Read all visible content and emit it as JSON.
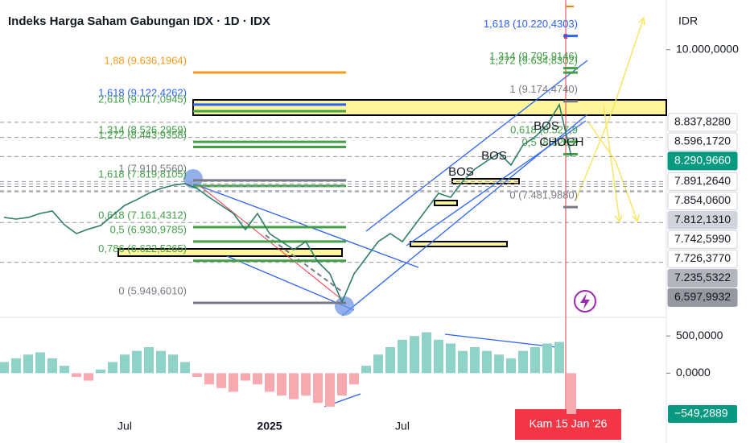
{
  "chart_data": [
    {
      "type": "line",
      "title": "Indeks Harga Saham Gabungan IDX · 1D · IDX",
      "currency": "IDR",
      "crosshair_label": "Kam 15 Jan '26",
      "categories": [
        null,
        null,
        null,
        null,
        null,
        null,
        null,
        null,
        null,
        null,
        "Jul",
        null,
        null,
        null,
        null,
        null,
        null,
        null,
        null,
        null,
        null,
        null,
        "2025",
        null,
        null,
        null,
        null,
        null,
        null,
        null,
        null,
        null,
        null,
        "Jul",
        null,
        null,
        null,
        null,
        null,
        null,
        null,
        null,
        null,
        null,
        null,
        null,
        null,
        null
      ],
      "values": [
        7316,
        7290,
        7316,
        7380,
        7419,
        7200,
        7058,
        7130,
        7187,
        7350,
        7509,
        7600,
        7703,
        7780,
        7831,
        7857,
        7780,
        7638,
        7509,
        7380,
        7122,
        7380,
        7058,
        6929,
        6800,
        6929,
        6607,
        6414,
        5963,
        6414,
        6671,
        6929,
        7058,
        6929,
        7187,
        7445,
        7703,
        7638,
        7896,
        8089,
        8218,
        8347,
        8154,
        8476,
        8605,
        8798,
        9120,
        8290.966
      ],
      "color": "#2e7d6b",
      "ylim": [
        5730,
        10796
      ],
      "yticks": [
        {
          "value": 10000,
          "label": "10.000,0000"
        }
      ],
      "price_tags": [
        {
          "value": 8837.828,
          "label": "8.837,8280",
          "bg": "#ffffff",
          "fg": "#131722"
        },
        {
          "value": 8596.172,
          "label": "8.596,1720",
          "bg": "#ffffff",
          "fg": "#131722"
        },
        {
          "value": 8290.966,
          "label": "8.290,9660",
          "bg": "#089981",
          "fg": "#ffffff"
        },
        {
          "value": 7891.264,
          "label": "7.891,2640",
          "bg": "#ffffff",
          "fg": "#131722"
        },
        {
          "value": 7854.06,
          "label": "7.854,0600",
          "bg": "#ffffff",
          "fg": "#131722"
        },
        {
          "value": 7812.131,
          "label": "7.812,1310",
          "bg": "#d1d4dc",
          "fg": "#131722"
        },
        {
          "value": 7742.599,
          "label": "7.742,5990",
          "bg": "#ffffff",
          "fg": "#131722"
        },
        {
          "value": 7726.377,
          "label": "7.726,3770",
          "bg": "#ffffff",
          "fg": "#131722"
        },
        {
          "value": 7235.5322,
          "label": "7.235,5322",
          "bg": "#b2b5be",
          "fg": "#131722"
        },
        {
          "value": 6597.9932,
          "label": "6.597,9932",
          "bg": "#9598a1",
          "fg": "#131722"
        }
      ],
      "fib_levels": [
        {
          "text": "1,88 (9.636,1964)",
          "value": 9636.1964,
          "color": "#f59c1a"
        },
        {
          "text": "1,618 (9.122,4262)",
          "value": 9122.4262,
          "color": "#2962ff"
        },
        {
          "text": "2,618 (9.017,0945)",
          "value": 9017.0945,
          "color": "#43a047"
        },
        {
          "text": "1,314 (8.526,2959)",
          "value": 8526.2959,
          "color": "#43a047"
        },
        {
          "text": "1,272 (8.443,9358)",
          "value": 8443.9358,
          "color": "#43a047"
        },
        {
          "text": "1 (7.910,5560)",
          "value": 7910.556,
          "color": "#787b86"
        },
        {
          "text": "1,618 (7.819,8105)",
          "value": 7819.8105,
          "color": "#43a047"
        },
        {
          "text": "0,618 (7.161,4312)",
          "value": 7161.4312,
          "color": "#43a047"
        },
        {
          "text": "0,5 (6.930,9785)",
          "value": 6930.9785,
          "color": "#43a047"
        },
        {
          "text": "0,786 (6.622,5265)",
          "value": 6622.5265,
          "color": "#43a047"
        },
        {
          "text": "0 (5.949,6010)",
          "value": 5949.601,
          "color": "#787b86"
        },
        {
          "text": "1,618 (10.220,4303)",
          "value": 10220.4303,
          "color": "#2962ff"
        },
        {
          "text": "1,314 (9.705,9146)",
          "value": 9705.9146,
          "color": "#43a047"
        },
        {
          "text": "1,272 (9.634,8302)",
          "value": 9634.8302,
          "color": "#43a047"
        },
        {
          "text": "1 (9.174,4740)",
          "value": 9174.474,
          "color": "#787b86"
        },
        {
          "text": "0,618 (8.527,9",
          "value": 8527.9,
          "color": "#43a047"
        },
        {
          "text": "0,5 (8.328,2",
          "value": 8328.2,
          "color": "#43a047"
        },
        {
          "text": "0 (7.481,9880)",
          "value": 7481.988,
          "color": "#787b86"
        }
      ],
      "labels": [
        "BOS",
        "BOS",
        "BOS",
        "CHOCH"
      ]
    },
    {
      "type": "bar",
      "values": [
        150,
        200,
        250,
        280,
        200,
        100,
        -50,
        -100,
        50,
        150,
        250,
        300,
        350,
        300,
        250,
        150,
        -50,
        -150,
        -200,
        -250,
        -100,
        -150,
        -250,
        -300,
        -350,
        -300,
        -400,
        -450,
        -300,
        -150,
        100,
        250,
        350,
        450,
        500,
        550,
        450,
        400,
        300,
        350,
        300,
        250,
        200,
        300,
        350,
        400,
        420,
        -549.2889
      ],
      "value_labels": [
        null,
        null,
        null,
        null,
        null,
        null,
        null,
        null,
        null,
        null,
        null,
        null,
        null,
        null,
        null,
        null,
        null,
        null,
        null,
        null,
        null,
        null,
        null,
        null,
        null,
        null,
        null,
        null,
        null,
        null,
        null,
        null,
        null,
        null,
        null,
        null,
        null,
        null,
        null,
        null,
        null,
        null,
        null,
        null,
        null,
        null,
        null,
        "−549,2889"
      ],
      "positive_color": "#8fd3c8",
      "negative_color": "#f7a9b0",
      "ylim": [
        -560,
        740
      ],
      "yticks": [
        {
          "value": 500,
          "label": "500,0000"
        },
        {
          "value": 0,
          "label": "0,0000"
        }
      ]
    }
  ]
}
